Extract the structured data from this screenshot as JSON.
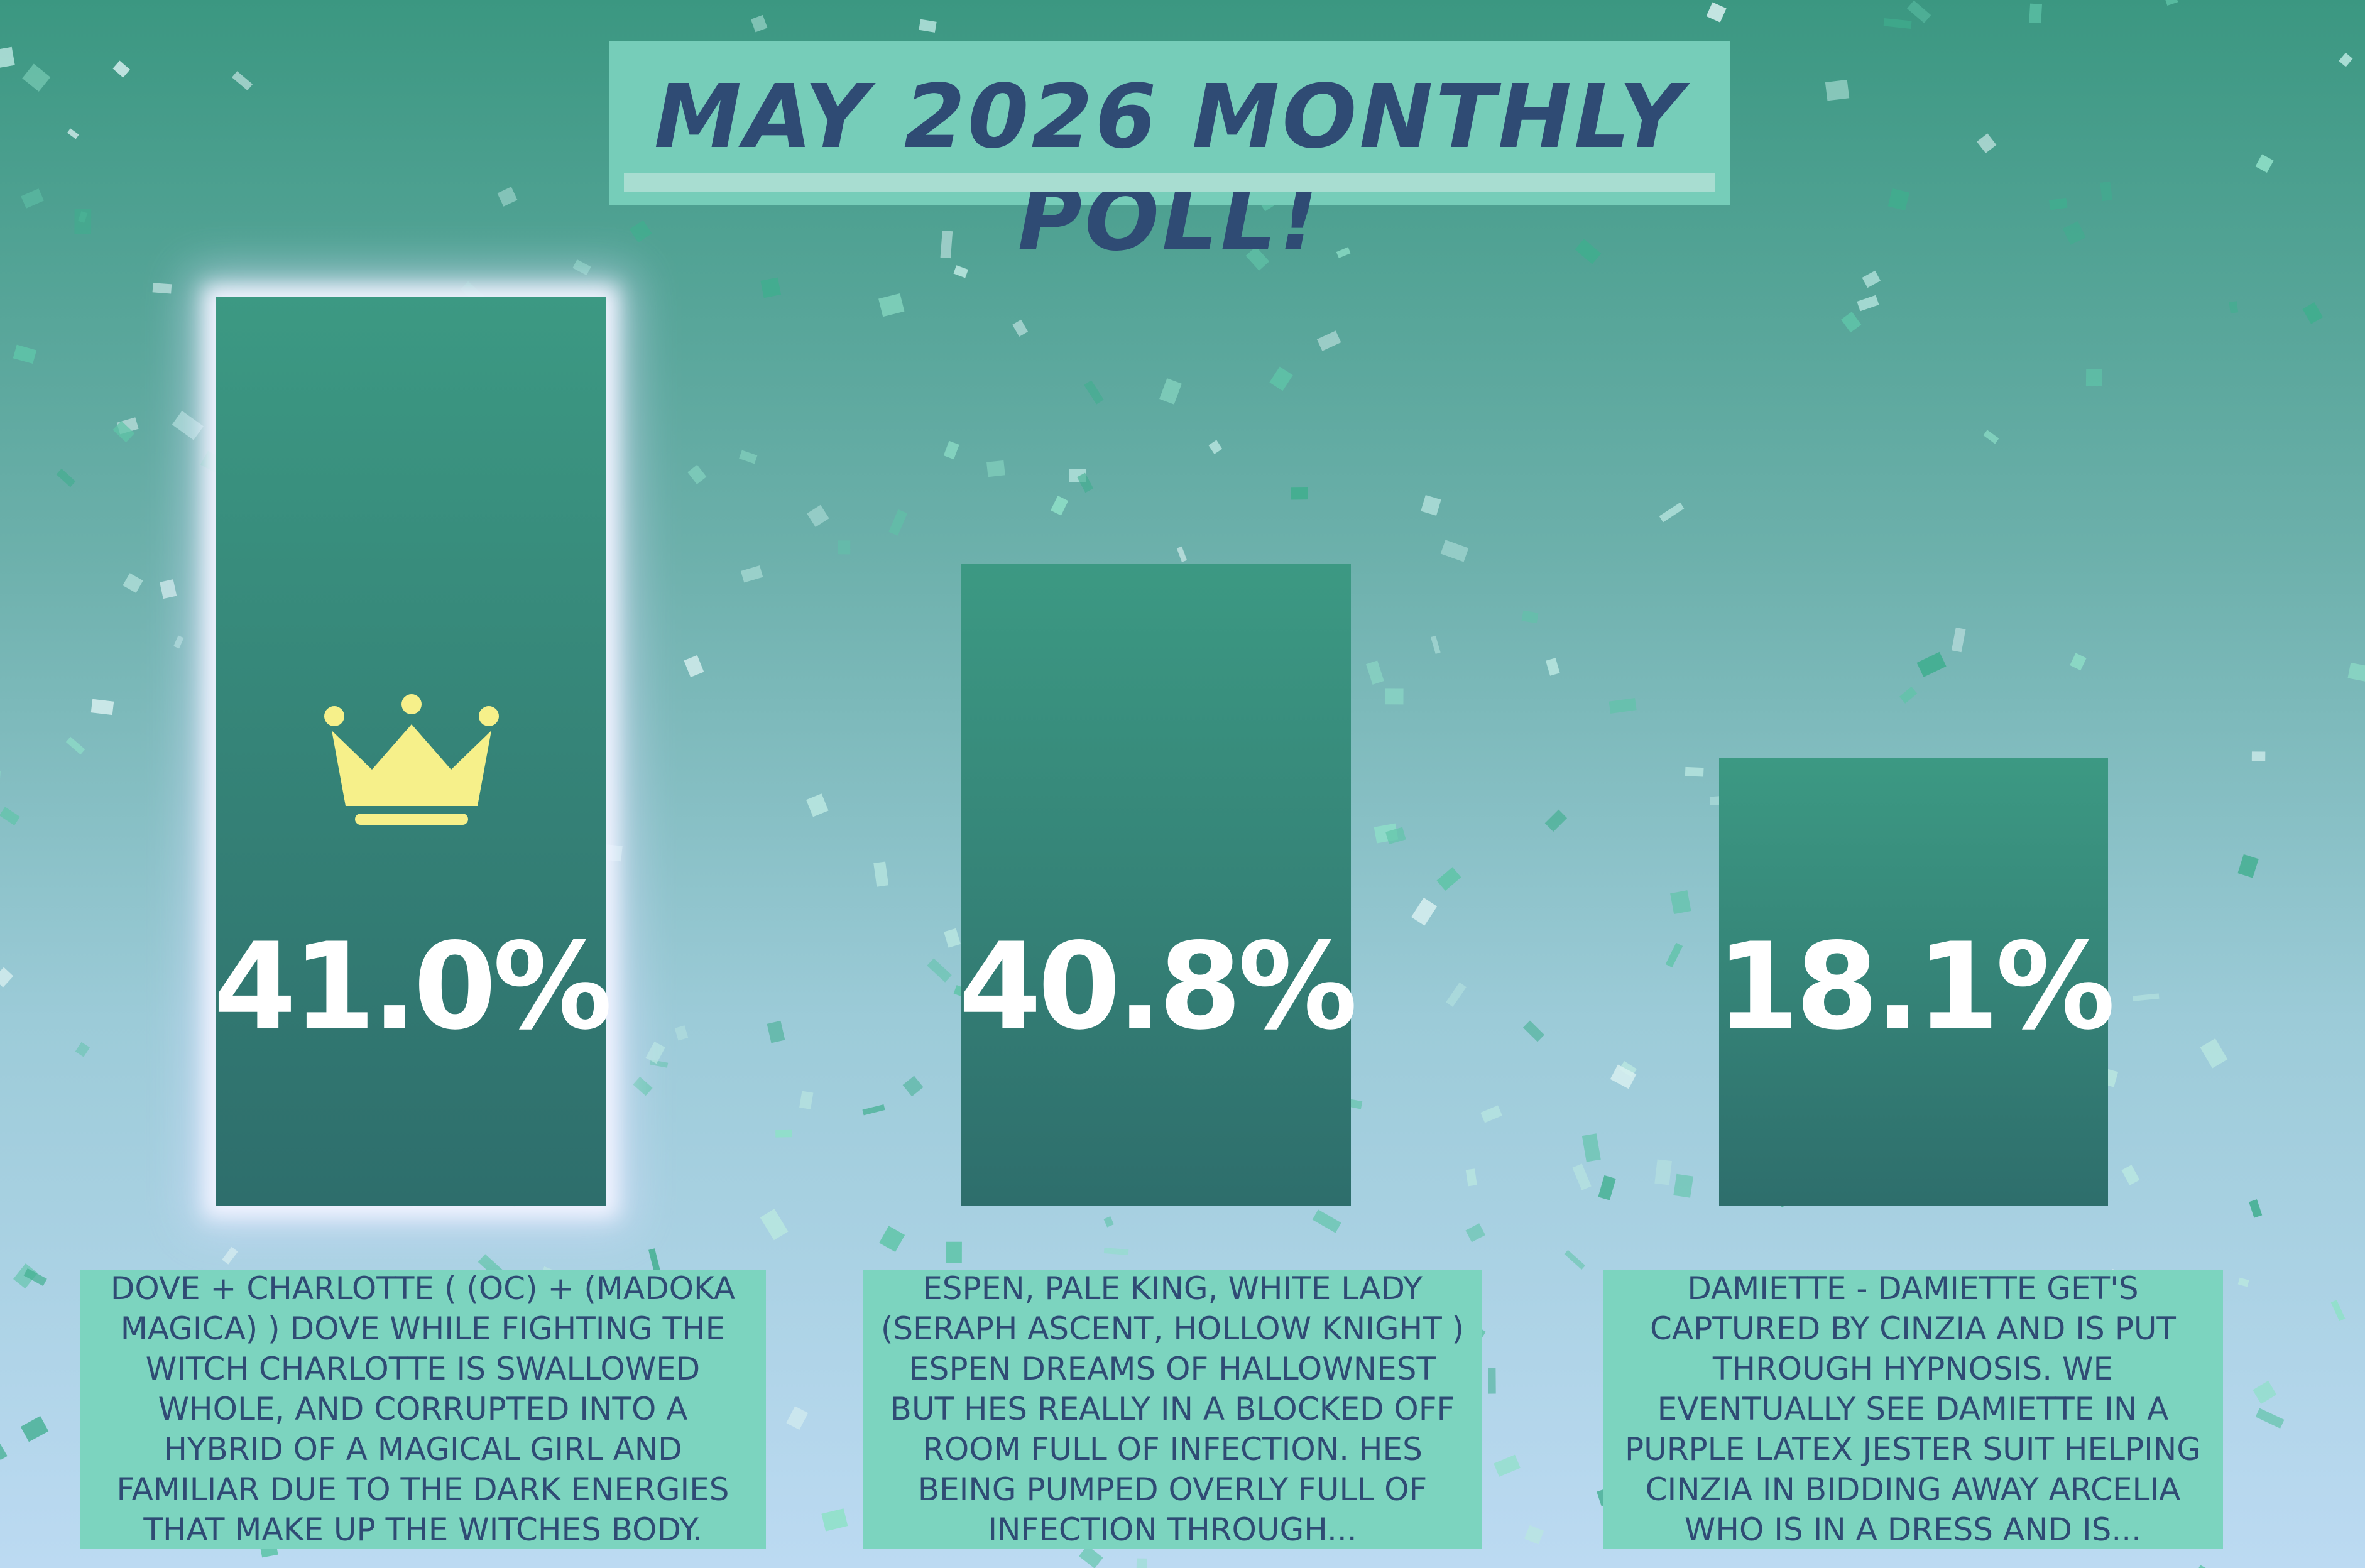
{
  "title": "MAY 2026 MONTHLY POLL!",
  "options": [
    {
      "percent": "41.0%",
      "description": "DOVE + CHARLOTTE ( (OC) + (MADOKA MAGICA) ) DOVE WHILE FIGHTING THE WITCH CHARLOTTE IS SWALLOWED WHOLE, AND CORRUPTED INTO A HYBRID OF A MAGICAL GIRL AND FAMILIAR DUE TO THE DARK ENERGIES THAT MAKE UP THE WITCHES BODY."
    },
    {
      "percent": "40.8%",
      "description": "ESPEN, PALE KING, WHITE LADY (SERAPH ASCENT, HOLLOW KNIGHT ) ESPEN DREAMS OF HALLOWNEST BUT HES REALLY IN A BLOCKED OFF ROOM FULL OF INFECTION. HES BEING PUMPED OVERLY FULL OF INFECTION THROUGH..."
    },
    {
      "percent": "18.1%",
      "description": "DAMIETTE - DAMIETTE GET'S CAPTURED BY CINZIA AND IS PUT THROUGH HYPNOSIS. WE EVENTUALLY SEE DAMIETTE IN A PURPLE LATEX JESTER SUIT HELPING CINZIA IN BIDDING AWAY ARCELIA WHO IS IN A DRESS AND IS..."
    }
  ]
}
